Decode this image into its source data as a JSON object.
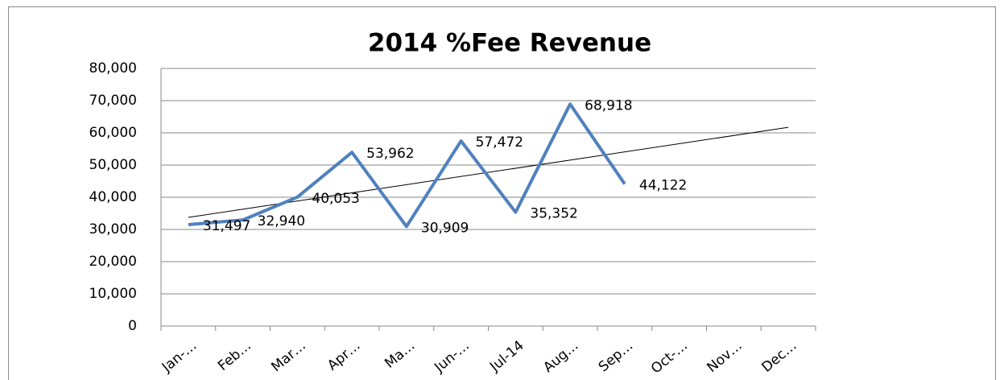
{
  "chart_data": {
    "type": "line",
    "title": "2014 %Fee Revenue",
    "categories": [
      "Jan-…",
      "Feb…",
      "Mar…",
      "Apr…",
      "Ma…",
      "Jun-…",
      "Jul-14",
      "Aug…",
      "Sep…",
      "Oct-…",
      "Nov…",
      "Dec…"
    ],
    "series": [
      {
        "name": "%Fee Revenue",
        "color": "#4f81bd",
        "values": [
          31497,
          32940,
          40053,
          53962,
          30909,
          57472,
          35352,
          68918,
          44122,
          null,
          null,
          null
        ],
        "value_labels": [
          "31,497",
          "32,940",
          "40,053",
          "53,962",
          "30,909",
          "57,472",
          "35,352",
          "68,918",
          "44,122",
          null,
          null,
          null
        ]
      }
    ],
    "trendline": "linear",
    "ylim": [
      0,
      80000
    ],
    "yticks": [
      0,
      {
        "value": 10000,
        "label": "10,000"
      },
      {
        "value": 20000,
        "label": "20,000"
      },
      {
        "value": 30000,
        "label": "30,000"
      },
      {
        "value": 40000,
        "label": "40,000"
      },
      {
        "value": 50000,
        "label": "50,000"
      },
      {
        "value": 60000,
        "label": "60,000"
      },
      {
        "value": 70000,
        "label": "70,000"
      },
      {
        "value": 80000,
        "label": "80,000"
      }
    ],
    "grid": true
  }
}
